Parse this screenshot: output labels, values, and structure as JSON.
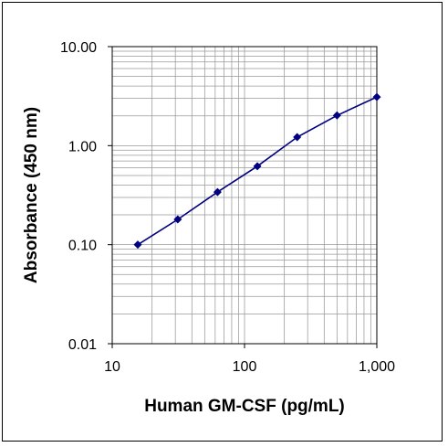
{
  "chart_data": {
    "type": "scatter",
    "title": "",
    "xlabel": "Human GM-CSF (pg/mL)",
    "ylabel": "Absorbance (450 nm)",
    "x_scale": "log",
    "y_scale": "log",
    "xlim": [
      10,
      1000
    ],
    "ylim": [
      0.01,
      10
    ],
    "grid": true,
    "legend": "none",
    "colors": {
      "series": "#000080",
      "grid": "#999999",
      "axis": "#000000"
    },
    "x_ticks": [
      {
        "value": 10,
        "label": "10"
      },
      {
        "value": 100,
        "label": "100"
      },
      {
        "value": 1000,
        "label": "1,000"
      }
    ],
    "y_ticks": [
      {
        "value": 10,
        "label": "10.00"
      },
      {
        "value": 1,
        "label": "1.00"
      },
      {
        "value": 0.1,
        "label": "0.10"
      },
      {
        "value": 0.01,
        "label": "0.01"
      }
    ],
    "series": [
      {
        "x": [
          15.6,
          31.3,
          62.5,
          125,
          250,
          500,
          1000
        ],
        "y": [
          0.1,
          0.18,
          0.34,
          0.62,
          1.22,
          2.02,
          3.1
        ]
      }
    ]
  }
}
